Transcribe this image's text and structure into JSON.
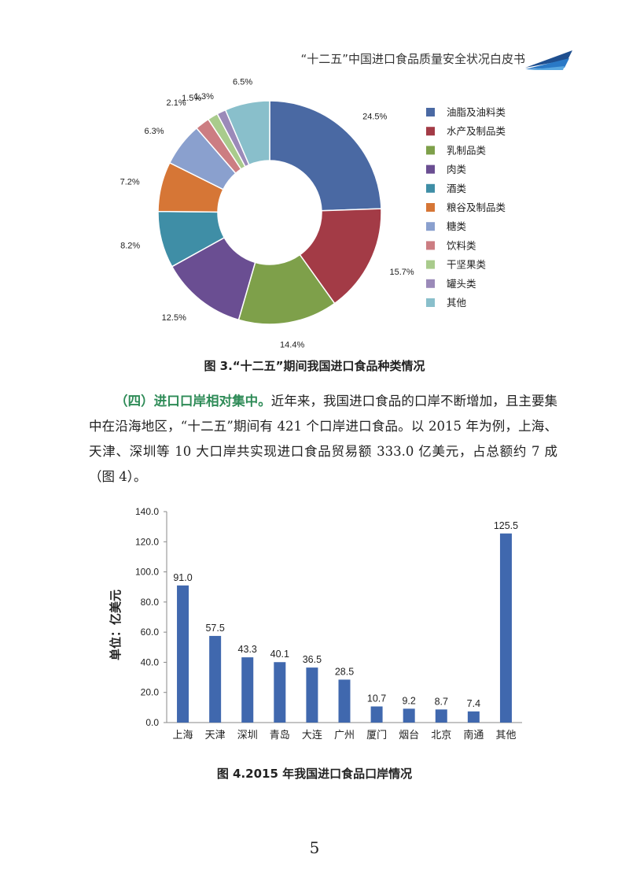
{
  "header": {
    "title": "“十二五”中国进口食品质量安全状况白皮书"
  },
  "chart_data": [
    {
      "type": "pie",
      "title": "图 3.“十二五”期间我国进口食品种类情况",
      "categories": [
        "油脂及油料类",
        "水产及制品类",
        "乳制品类",
        "肉类",
        "酒类",
        "粮谷及制品类",
        "糖类",
        "饮料类",
        "干坚果类",
        "罐头类",
        "其他"
      ],
      "values": [
        24.5,
        15.7,
        14.4,
        12.5,
        8.2,
        7.2,
        6.3,
        2.1,
        1.5,
        1.3,
        6.5
      ],
      "labels": [
        "24.5%",
        "15.7%",
        "14.4%",
        "12.5%",
        "8.2%",
        "7.2%",
        "6.3%",
        "2.1%",
        "1.5%",
        "1.3%",
        "6.5%"
      ],
      "colors": [
        "#4a69a3",
        "#a33b46",
        "#7ea04a",
        "#6a4e92",
        "#3f8ea6",
        "#d67636",
        "#8aa0ce",
        "#cc7d82",
        "#a9cb8c",
        "#9b8ab9",
        "#89bfcb"
      ],
      "legend": "right",
      "style": "donut"
    },
    {
      "type": "bar",
      "title": "图 4.2015 年我国进口食品口岸情况",
      "categories": [
        "上海",
        "天津",
        "深圳",
        "青岛",
        "大连",
        "广州",
        "厦门",
        "烟台",
        "北京",
        "南通",
        "其他"
      ],
      "values": [
        91.0,
        57.5,
        43.3,
        40.1,
        36.5,
        28.5,
        10.7,
        9.2,
        8.7,
        7.4,
        125.5
      ],
      "value_labels": [
        "91.0",
        "57.5",
        "43.3",
        "40.1",
        "36.5",
        "28.5",
        "10.7",
        "9.2",
        "8.7",
        "7.4",
        "125.5"
      ],
      "ylabel": "单位：亿美元",
      "ylim": [
        0,
        140
      ],
      "yticks": [
        0,
        20,
        40,
        60,
        80,
        100,
        120,
        140
      ],
      "ytick_labels": [
        "0.0",
        "20.0",
        "40.0",
        "60.0",
        "80.0",
        "100.0",
        "120.0",
        "140.0"
      ],
      "color": "#4068ae"
    }
  ],
  "captions": {
    "fig3": "图 3.“十二五”期间我国进口食品种类情况",
    "fig4": "图 4.2015 年我国进口食品口岸情况"
  },
  "paragraph": {
    "heading": "（四）进口口岸相对集中。",
    "body": "近年来，我国进口食品的口岸不断增加，且主要集中在沿海地区，“十二五”期间有 421 个口岸进口食品。以 2015 年为例，上海、天津、深圳等 10 大口岸共实现进口食品贸易额 333.0 亿美元，占总额约 7 成（图 4）。"
  },
  "page_number": "5"
}
